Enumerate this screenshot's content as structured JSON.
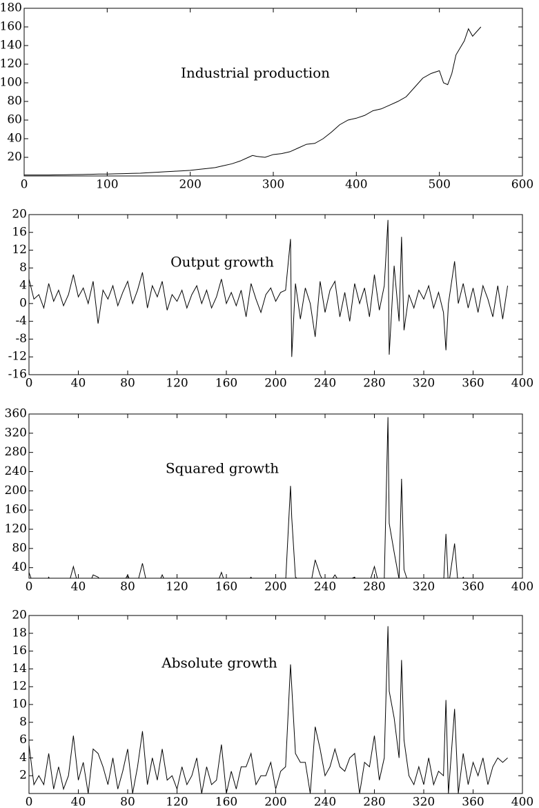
{
  "chart_data": [
    {
      "type": "line",
      "annotation": "Industrial production",
      "color": "#000000",
      "x": [
        0,
        10,
        20,
        30,
        40,
        50,
        60,
        70,
        80,
        90,
        100,
        110,
        120,
        130,
        140,
        150,
        160,
        170,
        180,
        190,
        200,
        210,
        220,
        230,
        240,
        250,
        260,
        270,
        275,
        280,
        290,
        300,
        310,
        320,
        330,
        340,
        350,
        360,
        370,
        380,
        390,
        400,
        410,
        420,
        430,
        440,
        450,
        460,
        470,
        480,
        490,
        500,
        505,
        510,
        515,
        520,
        530,
        535,
        540,
        550
      ],
      "values": [
        1,
        1,
        1,
        1,
        1.2,
        1.3,
        1.5,
        1.6,
        1.8,
        2,
        2,
        2.3,
        2.5,
        2.8,
        3,
        3.5,
        4,
        4.5,
        5,
        5.5,
        6,
        7,
        8,
        9,
        11,
        13,
        16,
        20,
        22,
        21,
        20,
        23,
        24,
        26,
        30,
        34,
        35,
        40,
        47,
        55,
        60,
        62,
        65,
        70,
        72,
        76,
        80,
        85,
        95,
        105,
        110,
        113,
        100,
        98,
        110,
        130,
        145,
        158,
        150,
        160
      ],
      "xlim": [
        0,
        600
      ],
      "xticks": [
        0,
        100,
        200,
        300,
        400,
        500,
        600
      ],
      "ylim": [
        0,
        180
      ],
      "yticks": [
        20,
        40,
        60,
        80,
        100,
        120,
        140,
        160,
        180
      ]
    },
    {
      "type": "line",
      "annotation": "Output growth",
      "color": "#000000",
      "x": [
        0,
        4,
        8,
        12,
        16,
        20,
        24,
        28,
        32,
        36,
        40,
        44,
        48,
        52,
        56,
        60,
        64,
        68,
        72,
        76,
        80,
        84,
        88,
        92,
        96,
        100,
        104,
        108,
        112,
        116,
        120,
        124,
        128,
        132,
        136,
        140,
        144,
        148,
        152,
        156,
        160,
        164,
        168,
        172,
        176,
        180,
        184,
        188,
        192,
        196,
        200,
        204,
        208,
        212,
        213,
        216,
        220,
        224,
        228,
        232,
        236,
        240,
        244,
        248,
        252,
        256,
        260,
        264,
        268,
        272,
        276,
        280,
        284,
        288,
        291,
        292,
        296,
        300,
        302,
        304,
        308,
        312,
        316,
        320,
        324,
        328,
        332,
        336,
        338,
        340,
        345,
        348,
        352,
        356,
        360,
        364,
        368,
        372,
        376,
        380,
        384,
        388
      ],
      "values": [
        5.5,
        1,
        2,
        -1,
        4.5,
        0.5,
        3,
        -0.5,
        2,
        6.5,
        1.5,
        3.5,
        0,
        5,
        -4.5,
        3,
        1,
        4,
        -0.5,
        2.5,
        5,
        0,
        3,
        7,
        -1,
        4,
        1.5,
        5,
        -1.5,
        2,
        0.5,
        3,
        -1,
        2,
        4,
        0,
        3,
        -1,
        1.5,
        5.5,
        0,
        2.5,
        -0.5,
        3,
        -3,
        4.5,
        1,
        -2,
        2,
        3.5,
        0.5,
        2.5,
        3,
        14.5,
        -12,
        4.5,
        -3.5,
        3.5,
        0,
        -7.5,
        5,
        -2,
        3,
        5,
        -3,
        2.5,
        -4,
        4.5,
        0,
        3.5,
        -3,
        6.5,
        -1.5,
        4,
        18.8,
        -11.5,
        8.5,
        -4,
        15,
        -6,
        2,
        -1,
        3,
        1,
        4,
        -1,
        2.5,
        -2,
        -10.5,
        0,
        9.5,
        0,
        4.5,
        -1,
        3.5,
        -2,
        4,
        1,
        -3,
        4,
        -3.5,
        4
      ],
      "xlim": [
        0,
        400
      ],
      "xticks": [
        0,
        40,
        80,
        120,
        160,
        200,
        240,
        280,
        320,
        360,
        400
      ],
      "ylim": [
        -16,
        20
      ],
      "yticks": [
        -16,
        -12,
        -8,
        -4,
        0,
        4,
        8,
        12,
        16,
        20
      ]
    },
    {
      "type": "line",
      "annotation": "Squared growth",
      "color": "#000000",
      "x": [
        0,
        4,
        8,
        12,
        16,
        20,
        24,
        28,
        32,
        36,
        40,
        44,
        48,
        52,
        56,
        60,
        64,
        68,
        72,
        76,
        80,
        84,
        88,
        92,
        96,
        100,
        104,
        108,
        112,
        116,
        120,
        124,
        128,
        132,
        136,
        140,
        144,
        148,
        152,
        156,
        160,
        164,
        168,
        172,
        176,
        180,
        184,
        188,
        192,
        196,
        200,
        204,
        208,
        212,
        213,
        216,
        220,
        224,
        228,
        232,
        236,
        240,
        244,
        248,
        252,
        256,
        260,
        264,
        268,
        272,
        276,
        280,
        284,
        288,
        291,
        292,
        296,
        300,
        302,
        304,
        308,
        312,
        316,
        320,
        324,
        328,
        332,
        336,
        338,
        340,
        345,
        348,
        352,
        356,
        360,
        364,
        368,
        372,
        376,
        380,
        384,
        388
      ],
      "values": [
        30.25,
        1,
        4,
        1,
        20.25,
        0.25,
        9,
        0.25,
        4,
        42.25,
        2.25,
        12.25,
        0,
        25,
        20.25,
        9,
        1,
        16,
        0.25,
        6.25,
        25,
        0,
        9,
        49,
        1,
        16,
        2.25,
        25,
        2.25,
        4,
        0.25,
        9,
        1,
        4,
        16,
        0,
        9,
        1,
        2.25,
        30.25,
        0,
        6.25,
        0.25,
        9,
        9,
        20.25,
        1,
        4,
        4,
        12.25,
        0.25,
        6.25,
        9,
        210.25,
        144,
        20.25,
        12.25,
        12.25,
        0,
        56.25,
        25,
        4,
        9,
        25,
        9,
        6.25,
        16,
        20.25,
        0,
        12.25,
        9,
        42.25,
        2.25,
        16,
        353.44,
        132.25,
        72.25,
        16,
        225,
        36,
        4,
        1,
        9,
        1,
        16,
        1,
        6.25,
        4,
        110.25,
        0,
        90.25,
        0,
        20.25,
        1,
        12.25,
        4,
        16,
        1,
        9,
        16,
        12.25,
        16
      ],
      "xlim": [
        0,
        400
      ],
      "xticks": [
        0,
        40,
        80,
        120,
        160,
        200,
        240,
        280,
        320,
        360,
        400
      ],
      "ylim": [
        18,
        360
      ],
      "yticks": [
        40,
        80,
        120,
        160,
        200,
        240,
        280,
        320,
        360
      ]
    },
    {
      "type": "line",
      "annotation": "Absolute growth",
      "color": "#000000",
      "x": [
        0,
        4,
        8,
        12,
        16,
        20,
        24,
        28,
        32,
        36,
        40,
        44,
        48,
        52,
        56,
        60,
        64,
        68,
        72,
        76,
        80,
        84,
        88,
        92,
        96,
        100,
        104,
        108,
        112,
        116,
        120,
        124,
        128,
        132,
        136,
        140,
        144,
        148,
        152,
        156,
        160,
        164,
        168,
        172,
        176,
        180,
        184,
        188,
        192,
        196,
        200,
        204,
        208,
        212,
        213,
        216,
        220,
        224,
        228,
        232,
        236,
        240,
        244,
        248,
        252,
        256,
        260,
        264,
        268,
        272,
        276,
        280,
        284,
        288,
        291,
        292,
        296,
        300,
        302,
        304,
        308,
        312,
        316,
        320,
        324,
        328,
        332,
        336,
        338,
        340,
        345,
        348,
        352,
        356,
        360,
        364,
        368,
        372,
        376,
        380,
        384,
        388
      ],
      "values": [
        5.5,
        1,
        2,
        1,
        4.5,
        0.5,
        3,
        0.5,
        2,
        6.5,
        1.5,
        3.5,
        0,
        5,
        4.5,
        3,
        1,
        4,
        0.5,
        2.5,
        5,
        0,
        3,
        7,
        1,
        4,
        1.5,
        5,
        1.5,
        2,
        0.5,
        3,
        1,
        2,
        4,
        0,
        3,
        1,
        1.5,
        5.5,
        0,
        2.5,
        0.5,
        3,
        3,
        4.5,
        1,
        2,
        2,
        3.5,
        0.5,
        2.5,
        3,
        14.5,
        12,
        4.5,
        3.5,
        3.5,
        0,
        7.5,
        5,
        2,
        3,
        5,
        3,
        2.5,
        4,
        4.5,
        0,
        3.5,
        3,
        6.5,
        1.5,
        4,
        18.8,
        11.5,
        8.5,
        4,
        15,
        6,
        2,
        1,
        3,
        1,
        4,
        1,
        2.5,
        2,
        10.5,
        0,
        9.5,
        0,
        4.5,
        1,
        3.5,
        2,
        4,
        1,
        3,
        4,
        3.5,
        4
      ],
      "xlim": [
        0,
        400
      ],
      "xticks": [
        0,
        40,
        80,
        120,
        160,
        200,
        240,
        280,
        320,
        360,
        400
      ],
      "ylim": [
        0,
        20
      ],
      "yticks": [
        2,
        4,
        6,
        8,
        10,
        12,
        14,
        16,
        18,
        20
      ]
    }
  ]
}
